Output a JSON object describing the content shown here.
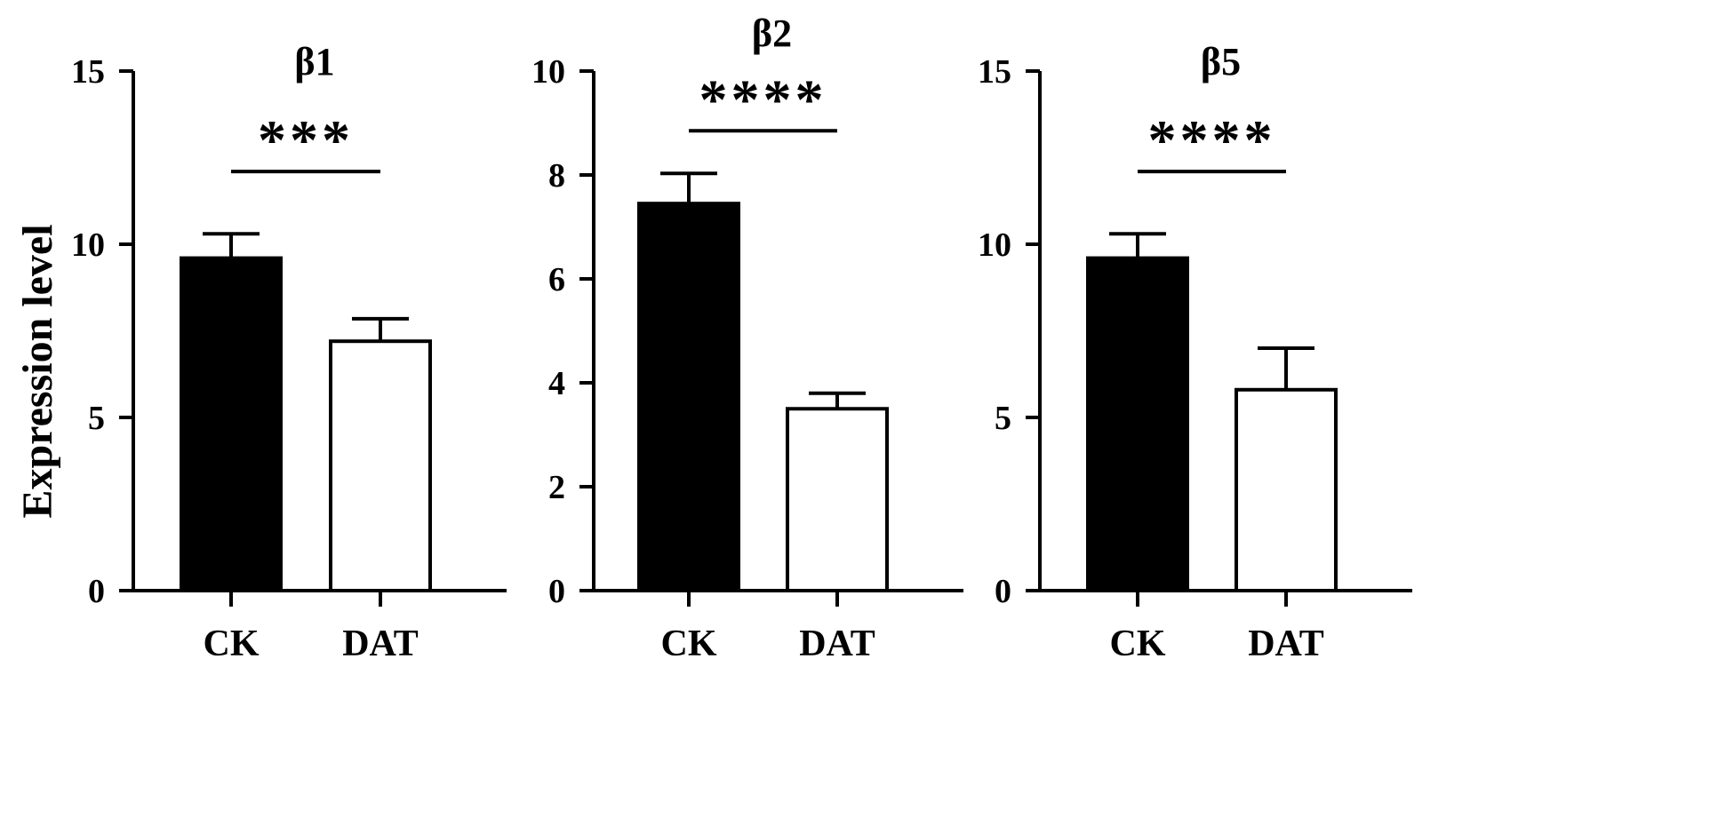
{
  "figure": {
    "ylabel": "Expression level"
  },
  "chart_data": [
    {
      "type": "bar",
      "title": "β1",
      "categories": [
        "CK",
        "DAT"
      ],
      "values": [
        9.6,
        7.2
      ],
      "errors": [
        0.7,
        0.65
      ],
      "colors": [
        "#000000",
        "#ffffff"
      ],
      "ylim": [
        0,
        15
      ],
      "yticks": [
        0,
        5,
        10,
        15
      ],
      "ylabel": "Expression level",
      "xlabel": "",
      "significance": "***",
      "significance_level": 12.1
    },
    {
      "type": "bar",
      "title": "β2",
      "categories": [
        "CK",
        "DAT"
      ],
      "values": [
        7.45,
        3.5
      ],
      "errors": [
        0.58,
        0.3
      ],
      "colors": [
        "#000000",
        "#ffffff"
      ],
      "ylim": [
        0,
        10
      ],
      "yticks": [
        0,
        2,
        4,
        6,
        8,
        10
      ],
      "ylabel": "",
      "xlabel": "",
      "significance": "****",
      "significance_level": 8.85
    },
    {
      "type": "bar",
      "title": "β5",
      "categories": [
        "CK",
        "DAT"
      ],
      "values": [
        9.6,
        5.8
      ],
      "errors": [
        0.7,
        1.2
      ],
      "colors": [
        "#000000",
        "#ffffff"
      ],
      "ylim": [
        0,
        15
      ],
      "yticks": [
        0,
        5,
        10,
        15
      ],
      "ylabel": "",
      "xlabel": "",
      "significance": "****",
      "significance_level": 12.1
    }
  ]
}
